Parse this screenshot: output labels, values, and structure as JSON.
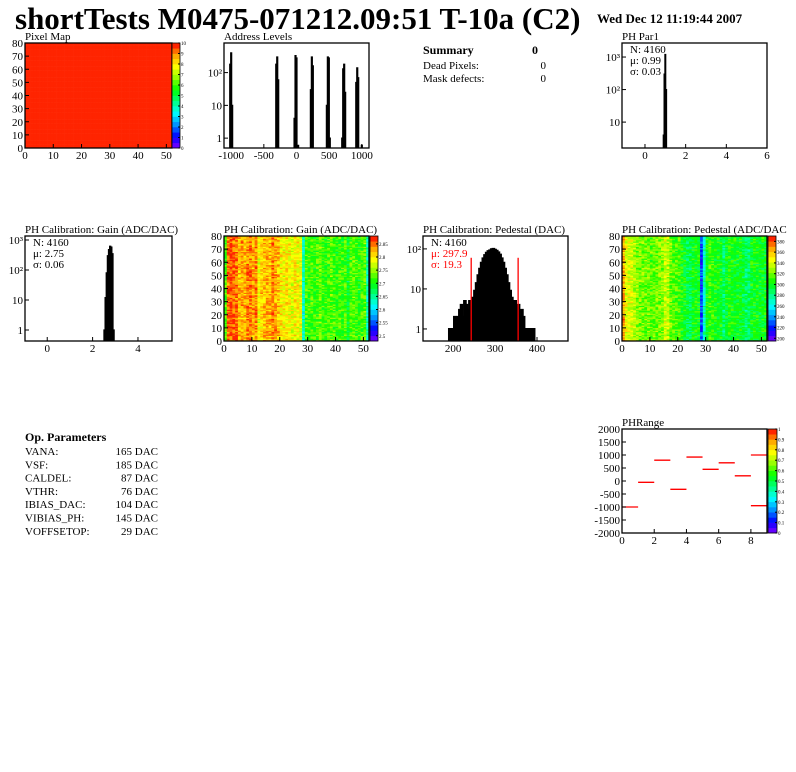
{
  "header": {
    "title": "shortTests M0475-071212.09:51 T-10a (C2)",
    "date": "Wed Dec 12 11:19:44 2007"
  },
  "summary": {
    "title": "Summary",
    "total": "0",
    "rows": [
      {
        "label": "Dead Pixels:",
        "value": "0"
      },
      {
        "label": "Mask defects:",
        "value": "0"
      }
    ]
  },
  "op_parameters": {
    "title": "Op. Parameters",
    "rows": [
      {
        "label": "VANA:",
        "value": "165 DAC"
      },
      {
        "label": "VSF:",
        "value": "185 DAC"
      },
      {
        "label": "CALDEL:",
        "value": "87 DAC"
      },
      {
        "label": "VTHR:",
        "value": "76 DAC"
      },
      {
        "label": "IBIAS_DAC:",
        "value": "104 DAC"
      },
      {
        "label": "VIBIAS_PH:",
        "value": "145 DAC"
      },
      {
        "label": "VOFFSETOP:",
        "value": "29 DAC"
      }
    ]
  },
  "colors": {
    "palette": [
      "#8000ff",
      "#0000ff",
      "#0090ff",
      "#00ffff",
      "#00ff80",
      "#00ff00",
      "#90ff00",
      "#ffff00",
      "#ffa000",
      "#ff0000"
    ],
    "frame": "#000000",
    "highlight": "#ff0000"
  },
  "chart_data": [
    {
      "id": "pixel_map",
      "type": "heatmap",
      "title": "Pixel Map",
      "xlim": [
        0,
        52
      ],
      "ylim": [
        0,
        80
      ],
      "zlim": [
        0,
        10
      ],
      "xticks": [
        0,
        10,
        20,
        30,
        40,
        50
      ],
      "yticks": [
        0,
        10,
        20,
        30,
        40,
        50,
        60,
        70,
        80
      ],
      "zticks": [
        0,
        1,
        2,
        3,
        4,
        5,
        6,
        7,
        8,
        9,
        10
      ],
      "uniform_value": 10
    },
    {
      "id": "address_levels",
      "type": "bar",
      "title": "Address Levels",
      "xlim": [
        -1110,
        1110
      ],
      "ylim": [
        0.5,
        800
      ],
      "log_y": true,
      "bin_width": 15,
      "xticks": [
        -1000,
        -500,
        0,
        500,
        1000
      ],
      "xtick_labels": [
        "-1000",
        "-500",
        "0",
        "500",
        "1000"
      ],
      "yticks": [
        1,
        10,
        100
      ],
      "ytick_labels": [
        "1",
        "10",
        "10²"
      ],
      "bins": [
        [
          -1015,
          180
        ],
        [
          -1000,
          400
        ],
        [
          -985,
          10
        ],
        [
          -310,
          180
        ],
        [
          -295,
          300
        ],
        [
          -280,
          60
        ],
        [
          -30,
          4
        ],
        [
          -15,
          330
        ],
        [
          0,
          280
        ],
        [
          25,
          0.6
        ],
        [
          220,
          30
        ],
        [
          235,
          300
        ],
        [
          250,
          160
        ],
        [
          465,
          10
        ],
        [
          480,
          300
        ],
        [
          495,
          280
        ],
        [
          510,
          1
        ],
        [
          700,
          1
        ],
        [
          715,
          130
        ],
        [
          730,
          180
        ],
        [
          745,
          25
        ],
        [
          915,
          50
        ],
        [
          930,
          140
        ],
        [
          945,
          70
        ],
        [
          1000,
          0.6
        ]
      ]
    },
    {
      "id": "ph_par1",
      "type": "bar",
      "title": "PH Par1",
      "xlim": [
        -1.13,
        6
      ],
      "ylim": [
        1.6,
        2700
      ],
      "log_y": true,
      "bin_width": 0.04,
      "xticks": [
        0,
        2,
        4,
        6
      ],
      "xtick_labels": [
        "0",
        "2",
        "4",
        "6"
      ],
      "yticks": [
        10,
        100,
        1000
      ],
      "ytick_labels": [
        "10",
        "10²",
        "10³"
      ],
      "stats": {
        "n": "N: 4160",
        "mean": "μ: 0.99",
        "sigma": "σ: 0.03"
      },
      "bins": [
        [
          0.92,
          4
        ],
        [
          0.96,
          300
        ],
        [
          1.0,
          1200
        ],
        [
          1.04,
          100
        ]
      ]
    },
    {
      "id": "gain_hist",
      "type": "bar",
      "title": "PH Calibration: Gain (ADC/DAC)",
      "xlim": [
        -0.98,
        5.5
      ],
      "ylim": [
        0.43,
        1360
      ],
      "log_y": true,
      "bin_width": 0.05,
      "xticks": [
        0,
        2,
        4
      ],
      "xtick_labels": [
        "0",
        "2",
        "4"
      ],
      "yticks": [
        1,
        10,
        100,
        1000
      ],
      "ytick_labels": [
        "1",
        "10",
        "10²",
        "10³"
      ],
      "stats": {
        "n": "N: 4160",
        "mean": "μ: 2.75",
        "sigma": "σ: 0.06"
      },
      "bins": [
        [
          2.525,
          1
        ],
        [
          2.575,
          12
        ],
        [
          2.625,
          80
        ],
        [
          2.675,
          300
        ],
        [
          2.725,
          480
        ],
        [
          2.775,
          620
        ],
        [
          2.825,
          580
        ],
        [
          2.875,
          350
        ],
        [
          2.925,
          1
        ]
      ]
    },
    {
      "id": "gain_map",
      "type": "heatmap",
      "title": "PH Calibration: Gain (ADC/DAC)",
      "xlim": [
        0,
        52
      ],
      "ylim": [
        0,
        80
      ],
      "zlim": [
        2.48,
        2.88
      ],
      "xticks": [
        0,
        10,
        20,
        30,
        40,
        50
      ],
      "yticks": [
        0,
        10,
        20,
        30,
        40,
        50,
        60,
        70,
        80
      ],
      "zticks": [
        2.5,
        2.55,
        2.6,
        2.65,
        2.7,
        2.75,
        2.8,
        2.85
      ],
      "column_means": [
        2.72,
        2.85,
        2.86,
        2.85,
        2.85,
        2.82,
        2.83,
        2.82,
        2.84,
        2.85,
        2.83,
        2.84,
        2.79,
        2.81,
        2.82,
        2.83,
        2.82,
        2.84,
        2.83,
        2.82,
        2.8,
        2.79,
        2.8,
        2.79,
        2.78,
        2.8,
        2.79,
        2.78,
        2.63,
        2.72,
        2.71,
        2.72,
        2.71,
        2.72,
        2.73,
        2.72,
        2.71,
        2.72,
        2.73,
        2.72,
        2.71,
        2.72,
        2.71,
        2.72,
        2.69,
        2.72,
        2.73,
        2.72,
        2.71,
        2.72,
        2.73,
        2.64
      ]
    },
    {
      "id": "pedestal_hist",
      "type": "bar",
      "title": "PH Calibration: Pedestal (DAC)",
      "xlim": [
        128,
        474
      ],
      "ylim": [
        0.5,
        210
      ],
      "log_y": true,
      "bin_width": 4,
      "xticks": [
        200,
        300,
        400
      ],
      "xtick_labels": [
        "200",
        "300",
        "400"
      ],
      "yticks": [
        1,
        10,
        100
      ],
      "ytick_labels": [
        "1",
        "10",
        "10²"
      ],
      "stats": {
        "n": "N: 4160",
        "mean": "μ: 297.9",
        "sigma": "σ: 19.3"
      },
      "fit_range": [
        243,
        355
      ],
      "bins": [
        [
          192,
          1
        ],
        [
          196,
          1
        ],
        [
          200,
          1
        ],
        [
          204,
          2
        ],
        [
          208,
          1
        ],
        [
          212,
          2
        ],
        [
          216,
          3
        ],
        [
          220,
          4
        ],
        [
          224,
          2
        ],
        [
          228,
          5
        ],
        [
          232,
          4
        ],
        [
          236,
          3
        ],
        [
          240,
          5
        ],
        [
          244,
          4
        ],
        [
          248,
          6
        ],
        [
          252,
          9
        ],
        [
          256,
          14
        ],
        [
          260,
          22
        ],
        [
          264,
          32
        ],
        [
          268,
          45
        ],
        [
          272,
          58
        ],
        [
          276,
          70
        ],
        [
          280,
          80
        ],
        [
          284,
          88
        ],
        [
          288,
          92
        ],
        [
          292,
          98
        ],
        [
          296,
          100
        ],
        [
          300,
          95
        ],
        [
          304,
          90
        ],
        [
          308,
          82
        ],
        [
          312,
          72
        ],
        [
          316,
          58
        ],
        [
          320,
          45
        ],
        [
          324,
          32
        ],
        [
          328,
          22
        ],
        [
          332,
          14
        ],
        [
          336,
          9
        ],
        [
          340,
          6
        ],
        [
          344,
          4
        ],
        [
          348,
          5
        ],
        [
          352,
          3
        ],
        [
          356,
          4
        ],
        [
          360,
          2
        ],
        [
          364,
          3
        ],
        [
          368,
          2
        ],
        [
          372,
          1
        ],
        [
          376,
          1
        ],
        [
          380,
          1
        ],
        [
          384,
          1
        ],
        [
          392,
          1
        ]
      ]
    },
    {
      "id": "pedestal_map",
      "type": "heatmap",
      "title": "PH Calibration: Pedestal (ADC/DAC",
      "xlim": [
        0,
        52
      ],
      "ylim": [
        0,
        80
      ],
      "zlim": [
        195,
        390
      ],
      "xticks": [
        0,
        10,
        20,
        30,
        40,
        50
      ],
      "yticks": [
        0,
        10,
        20,
        30,
        40,
        50,
        60,
        70,
        80
      ],
      "zticks": [
        200,
        220,
        240,
        260,
        280,
        300,
        320,
        340,
        360,
        380
      ],
      "column_means": [
        365,
        345,
        340,
        338,
        330,
        325,
        322,
        320,
        318,
        320,
        316,
        318,
        320,
        322,
        326,
        336,
        334,
        320,
        315,
        312,
        310,
        305,
        300,
        292,
        290,
        300,
        305,
        300,
        225,
        270,
        305,
        310,
        308,
        305,
        302,
        300,
        285,
        300,
        305,
        302,
        300,
        298,
        300,
        295,
        285,
        288,
        300,
        302,
        300,
        298,
        300,
        300
      ]
    },
    {
      "id": "ph_range",
      "type": "line",
      "title": "PHRange",
      "xlim": [
        0,
        9
      ],
      "ylim": [
        -2000,
        2000
      ],
      "zlim": [
        0,
        1
      ],
      "xticks": [
        0,
        2,
        4,
        6,
        8
      ],
      "yticks": [
        2000,
        1500,
        1000,
        500,
        0,
        -500,
        -1000,
        -1500,
        -2000
      ],
      "zticks": [
        0,
        0.1,
        0.2,
        0.3,
        0.4,
        0.5,
        0.6,
        0.7,
        0.8,
        0.9,
        1
      ],
      "segments": [
        [
          0,
          1,
          -1000
        ],
        [
          1,
          2,
          -50
        ],
        [
          2,
          3,
          800
        ],
        [
          3,
          4,
          -320
        ],
        [
          4,
          5,
          920
        ],
        [
          5,
          6,
          450
        ],
        [
          6,
          7,
          700
        ],
        [
          7,
          8,
          200
        ],
        [
          8,
          9,
          1000
        ],
        [
          8,
          9,
          -950
        ]
      ]
    }
  ]
}
